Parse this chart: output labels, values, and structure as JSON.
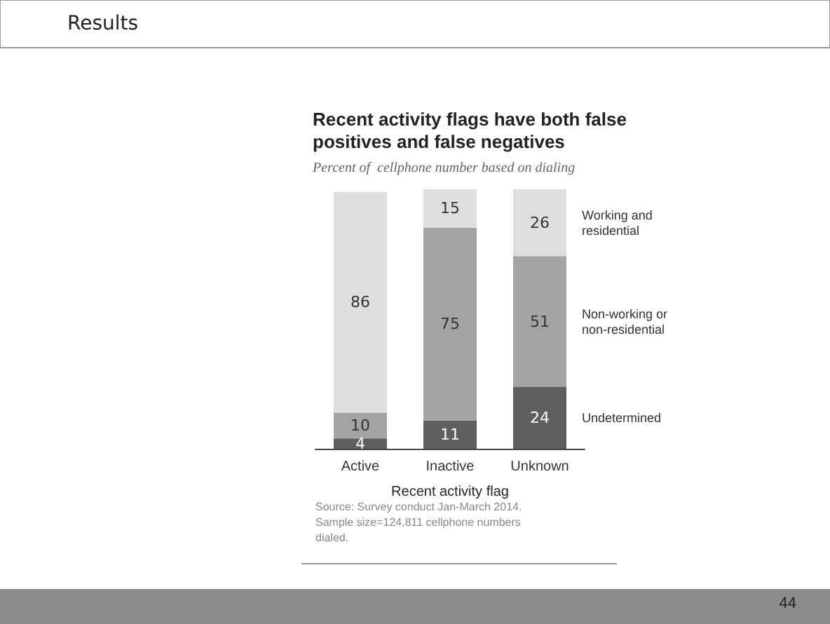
{
  "chart_data": {
    "type": "bar",
    "title": "Recent activity flags have both false positives and false negatives",
    "subtitle": "Percent of  cellphone number based on dialing",
    "xlabel": "Recent activity flag",
    "categories": [
      "Active",
      "Inactive",
      "Unknown"
    ],
    "stacked": true,
    "data_labels": true,
    "legend": "right",
    "series": [
      {
        "name": "Undetermined",
        "color": "#5f5f5f",
        "values": [
          4,
          11,
          24
        ]
      },
      {
        "name": "Non-working or non-residential",
        "color": "#a3a3a3",
        "values": [
          10,
          75,
          51
        ]
      },
      {
        "name": "Working and residential",
        "color": "#dedede",
        "values": [
          86,
          15,
          26
        ]
      }
    ],
    "annotations": [
      "Results",
      "Source: Survey conduct Jan-March 2014. Sample size=124,811 cellphone numbers dialed.",
      "44"
    ]
  }
}
